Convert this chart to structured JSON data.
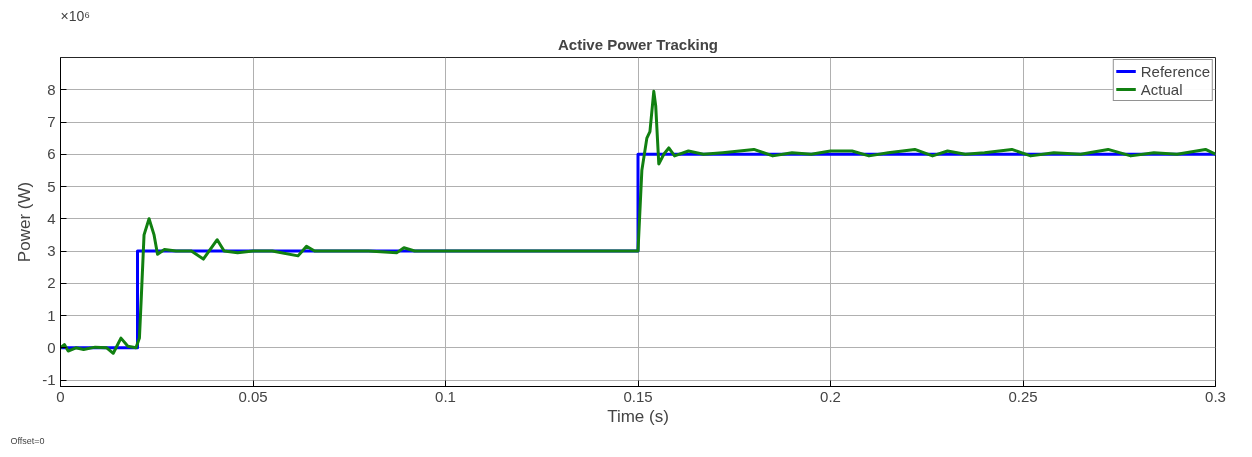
{
  "chart_data": {
    "type": "line",
    "title": "Active Power Tracking",
    "xlabel": "Time (s)",
    "ylabel": "Power (W)",
    "annotations": [
      "×10⁶",
      "Offset=0"
    ],
    "xlim": [
      0,
      0.3
    ],
    "xticks": [
      0,
      0.05,
      0.1,
      0.15,
      0.2,
      0.25,
      0.3
    ],
    "ylim": [
      -1.2,
      9
    ],
    "yticks": [
      -1,
      0,
      1,
      2,
      3,
      4,
      5,
      6,
      7,
      8
    ],
    "grid": true,
    "legend": "top right",
    "line_style": "solid",
    "series": [
      {
        "name": "Reference",
        "color": "#0000ff",
        "x": [
          0,
          0.02,
          0.02,
          0.15,
          0.15,
          0.3
        ],
        "values": [
          0,
          0,
          3,
          3,
          6,
          6
        ]
      },
      {
        "name": "Actual",
        "color": "#118011",
        "x": [
          0,
          0.001,
          0.002,
          0.004,
          0.006,
          0.009,
          0.012,
          0.0137,
          0.0157,
          0.0175,
          0.0196,
          0.0205,
          0.021,
          0.0217,
          0.023,
          0.0243,
          0.0252,
          0.027,
          0.03,
          0.034,
          0.0371,
          0.0407,
          0.0425,
          0.046,
          0.05,
          0.055,
          0.0617,
          0.0639,
          0.066,
          0.07,
          0.075,
          0.08,
          0.0874,
          0.0892,
          0.092,
          0.1,
          0.11,
          0.12,
          0.13,
          0.14,
          0.1495,
          0.15,
          0.151,
          0.1523,
          0.1531,
          0.1541,
          0.1546,
          0.1554,
          0.1567,
          0.158,
          0.1595,
          0.1631,
          0.167,
          0.172,
          0.1801,
          0.185,
          0.19,
          0.195,
          0.2,
          0.2056,
          0.21,
          0.215,
          0.2219,
          0.2265,
          0.2304,
          0.235,
          0.24,
          0.2471,
          0.252,
          0.258,
          0.265,
          0.2721,
          0.278,
          0.284,
          0.29,
          0.2974,
          0.3
        ],
        "values": [
          0,
          0.1,
          -0.1,
          0,
          -0.05,
          0.02,
          0,
          -0.17,
          0.3,
          0.05,
          0,
          0.3,
          1.6,
          3.5,
          4.0,
          3.5,
          2.9,
          3.05,
          3.0,
          3.0,
          2.75,
          3.35,
          3.0,
          2.95,
          3.0,
          3.0,
          2.85,
          3.15,
          3.0,
          3.0,
          3.0,
          3.0,
          2.95,
          3.1,
          3.0,
          3.0,
          3.0,
          3.0,
          3.0,
          3.0,
          3.0,
          3.0,
          5.5,
          6.5,
          6.7,
          7.95,
          7.5,
          5.7,
          6.0,
          6.2,
          5.95,
          6.1,
          6.0,
          6.05,
          6.15,
          5.95,
          6.05,
          6.0,
          6.1,
          6.1,
          5.95,
          6.05,
          6.15,
          5.95,
          6.1,
          6.0,
          6.05,
          6.15,
          5.95,
          6.05,
          6.0,
          6.15,
          5.95,
          6.05,
          6.0,
          6.15,
          6.0
        ]
      }
    ]
  }
}
